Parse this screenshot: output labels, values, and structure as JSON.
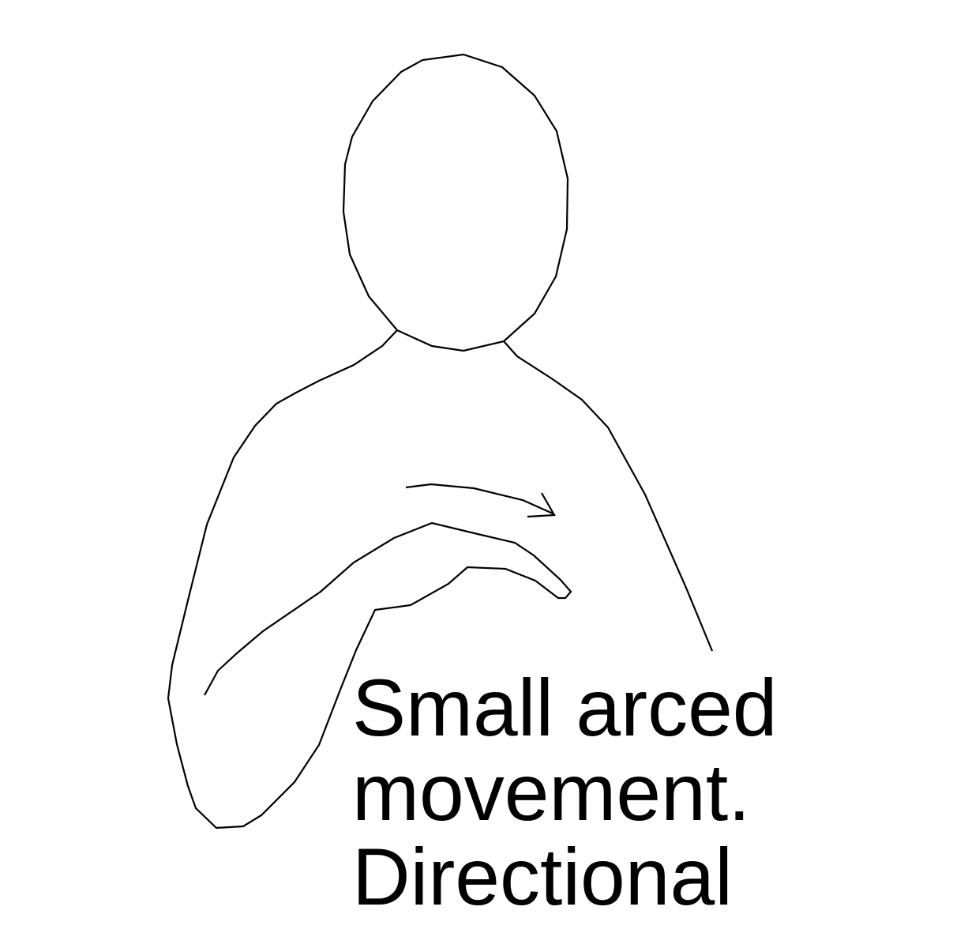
{
  "illustration": {
    "subject": "person-upper-body",
    "movement_arrow": "arrow-right-icon"
  },
  "caption": {
    "lines": [
      "Small arced",
      "movement.",
      "Directional"
    ]
  },
  "colors": {
    "line": "#000000",
    "background": "#ffffff"
  }
}
